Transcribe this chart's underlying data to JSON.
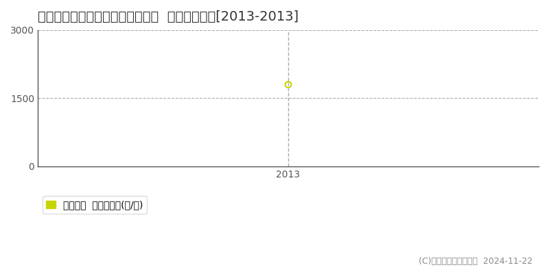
{
  "title": "石狩郡当別町スウェーデンヒルズ  林地価格推移[2013-2013]",
  "year": 2013,
  "value": 1800,
  "ylim": [
    0,
    3000
  ],
  "yticks": [
    0,
    1500,
    3000
  ],
  "data_color": "#c8d400",
  "grid_color": "#aaaaaa",
  "spine_color": "#555555",
  "bg_color": "#ffffff",
  "plot_bg_color": "#ffffff",
  "legend_label": "林地価格  平均坪単価(円/坪)",
  "copyright_text": "(C)土地価格ドットコム  2024-11-22",
  "title_fontsize": 14,
  "tick_fontsize": 10,
  "legend_fontsize": 10
}
